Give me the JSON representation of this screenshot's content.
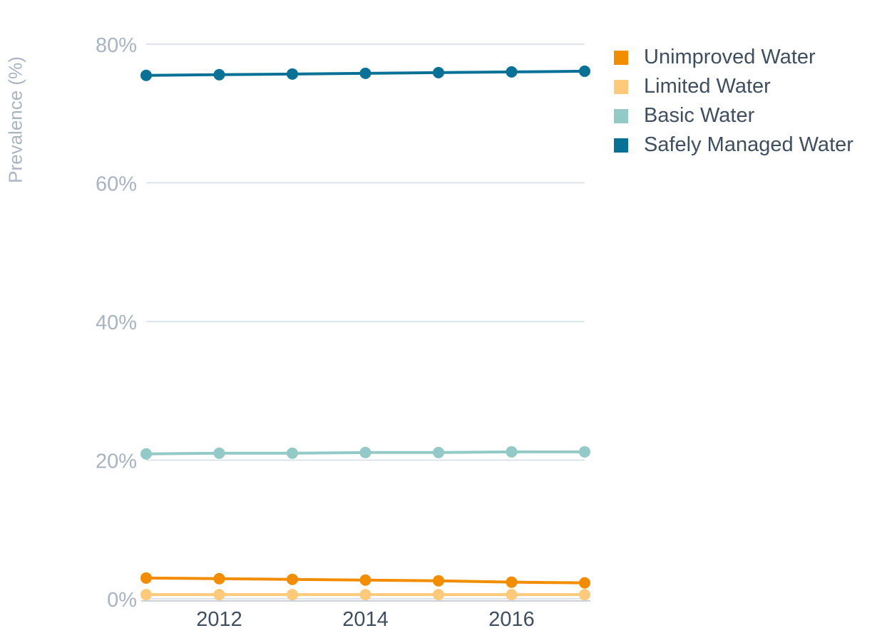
{
  "chart_data": {
    "type": "line",
    "ylabel": "Prevalence (%)",
    "xlabel": "",
    "ylim": [
      0,
      80
    ],
    "xlim": [
      2011,
      2017
    ],
    "x": [
      2011,
      2012,
      2013,
      2014,
      2015,
      2016,
      2017
    ],
    "x_ticks": [
      2012,
      2014,
      2016
    ],
    "x_tick_labels": [
      "2012",
      "2014",
      "2016"
    ],
    "y_ticks": [
      0,
      20,
      40,
      60,
      80
    ],
    "y_tick_labels": [
      "0%",
      "20%",
      "40%",
      "60%",
      "80%"
    ],
    "grid": true,
    "legend_position": "top-right",
    "series": [
      {
        "name": "Unimproved Water",
        "color": "#f28c00",
        "values": [
          3.0,
          2.9,
          2.8,
          2.7,
          2.6,
          2.4,
          2.3
        ]
      },
      {
        "name": "Limited Water",
        "color": "#fdc97a",
        "values": [
          0.6,
          0.6,
          0.6,
          0.6,
          0.6,
          0.6,
          0.6
        ]
      },
      {
        "name": "Basic Water",
        "color": "#93c9c6",
        "values": [
          20.9,
          21.0,
          21.0,
          21.1,
          21.1,
          21.2,
          21.2
        ]
      },
      {
        "name": "Safely Managed Water",
        "color": "#0a7196",
        "values": [
          75.5,
          75.6,
          75.7,
          75.8,
          75.9,
          76.0,
          76.1
        ]
      }
    ]
  }
}
